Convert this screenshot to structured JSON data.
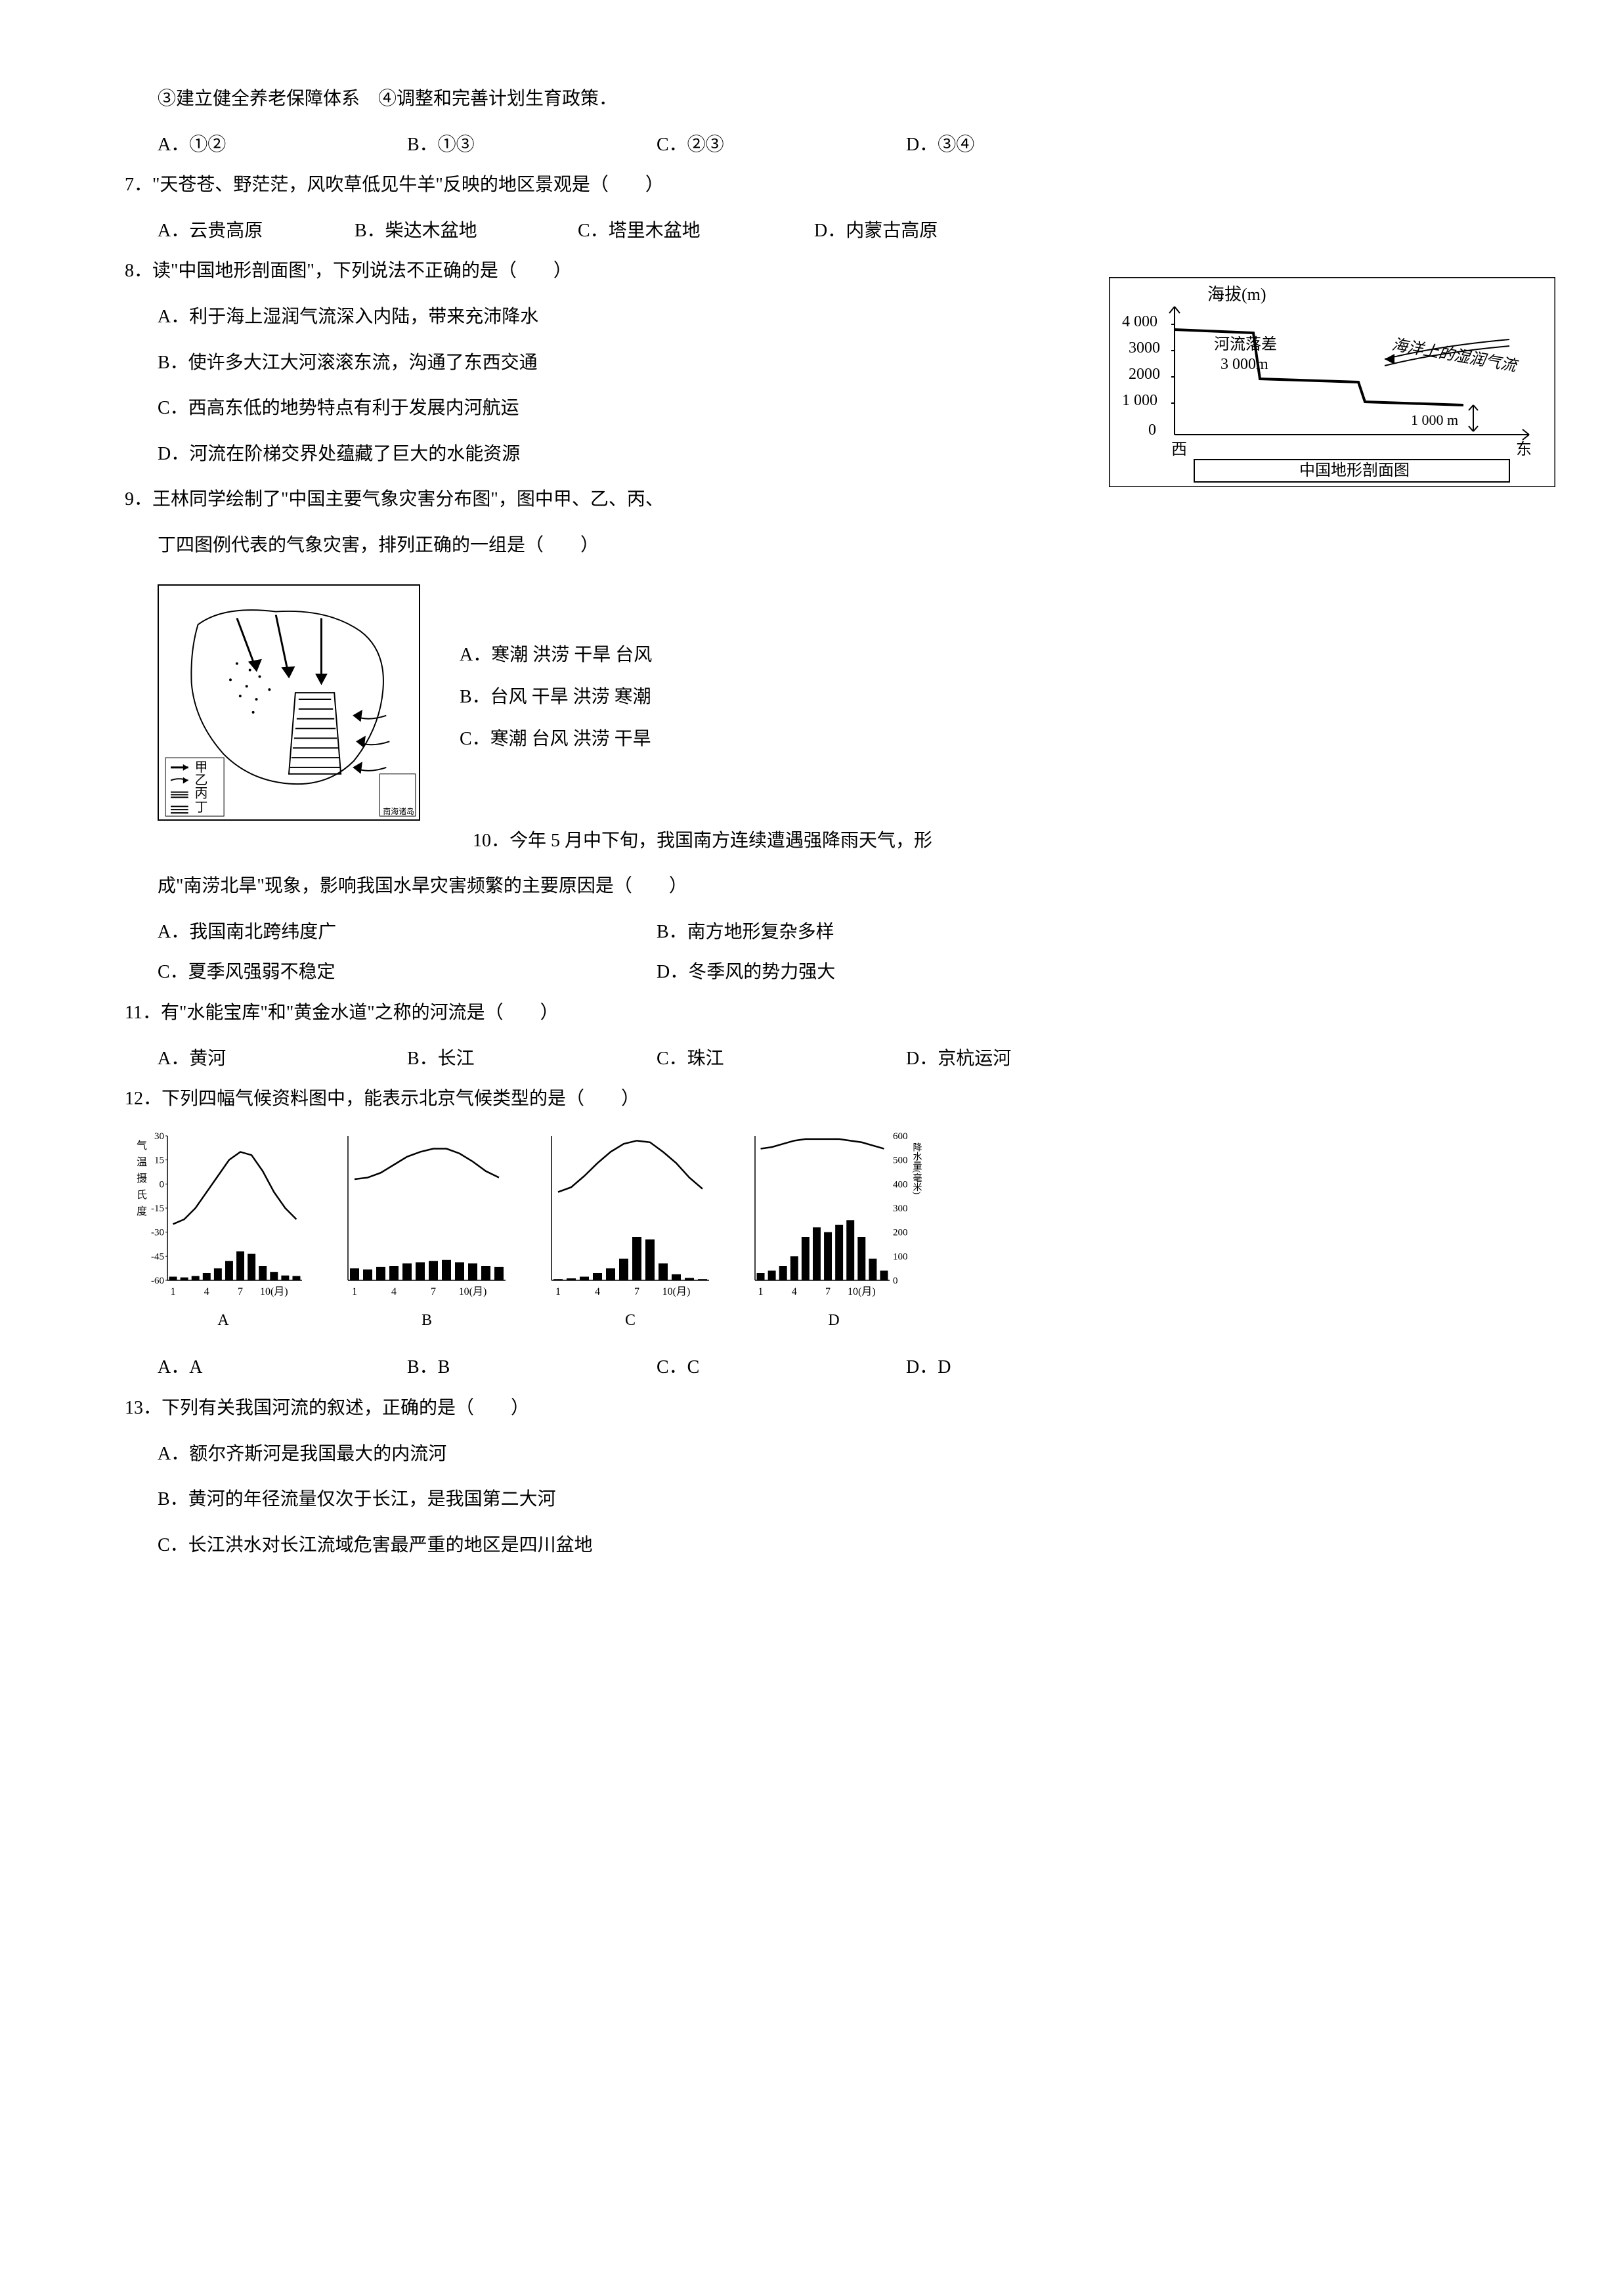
{
  "q6_pre": {
    "line1": "③建立健全养老保障体系　④调整和完善计划生育政策．",
    "opts": [
      "A．①②",
      "B．①③",
      "C．②③",
      "D．③④"
    ]
  },
  "q7": {
    "stem": "7．\"天苍苍、野茫茫，风吹草低见牛羊\"反映的地区景观是（　　）",
    "opts": [
      "A．云贵高原",
      "B．柴达木盆地",
      "C．塔里木盆地",
      "D．内蒙古高原"
    ]
  },
  "q8": {
    "stem": "8．读\"中国地形剖面图\"，下列说法不正确的是（　　）",
    "a": "A．利于海上湿润气流深入内陆，带来充沛降水",
    "b": "B．使许多大江大河滚滚东流，沟通了东西交通",
    "c": "C．西高东低的地势特点有利于发展内河航运",
    "d": "D．河流在阶梯交界处蕴藏了巨大的水能资源"
  },
  "q8_chart": {
    "title": "海拔(m)",
    "ylabels": [
      "4 000",
      "3000",
      "2000",
      "1 000",
      "0"
    ],
    "annot1": "河流落差",
    "annot2": "3 000m",
    "annot3": "海洋上的湿润气流",
    "annot4": "1 000 m",
    "xlabel_l": "西",
    "xlabel_r": "东",
    "caption": "中国地形剖面图",
    "line_points": "0,20 120,25 130,95 280,100 290,130 440,135"
  },
  "q9": {
    "stem1": "9．王林同学绘制了\"中国主要气象灾害分布图\"，图中甲、乙、丙、",
    "stem2": "丁四图例代表的气象灾害，排列正确的一组是（　　）",
    "a": "A．寒潮 洪涝 干旱 台风",
    "b": "B．台风 干旱 洪涝 寒潮",
    "c": "C．寒潮 台风 洪涝 干旱",
    "legend": [
      "甲",
      "乙",
      "丙",
      "丁"
    ]
  },
  "q10": {
    "stem_pre": "10．今年 5 月中下旬，我国南方连续遭遇强降雨天气，形",
    "stem2": "成\"南涝北旱\"现象，影响我国水旱灾害频繁的主要原因是（　　）",
    "a": "A．我国南北跨纬度广",
    "b": "B．南方地形复杂多样",
    "c": "C．夏季风强弱不稳定",
    "d": "D．冬季风的势力强大"
  },
  "q11": {
    "stem": "11．有\"水能宝库\"和\"黄金水道\"之称的河流是（　　）",
    "opts": [
      "A．黄河",
      "B．长江",
      "C．珠江",
      "D．京杭运河"
    ]
  },
  "q12": {
    "stem": "12．下列四幅气候资料图中，能表示北京气候类型的是（　　）",
    "labels": [
      "A",
      "B",
      "C",
      "D"
    ],
    "opts": [
      "A．A",
      "B．B",
      "C．C",
      "D．D"
    ],
    "yaxis_label": "气温摄氏度",
    "yaxis_r_label": "降水量(毫米)",
    "y_left": [
      "30",
      "15",
      "0",
      "-15",
      "-30",
      "-45",
      "-60"
    ],
    "y_right": [
      "600",
      "500",
      "400",
      "300",
      "200",
      "100",
      "0"
    ],
    "x_ticks": [
      "1",
      "4",
      "7",
      "10(月)"
    ],
    "chart_a": {
      "temp": [
        -25,
        -22,
        -15,
        -5,
        5,
        15,
        20,
        18,
        8,
        -5,
        -15,
        -22
      ],
      "precip": [
        15,
        12,
        18,
        30,
        50,
        80,
        120,
        110,
        60,
        35,
        20,
        18
      ]
    },
    "chart_b": {
      "temp": [
        3,
        4,
        7,
        12,
        17,
        20,
        22,
        22,
        19,
        14,
        8,
        4
      ],
      "precip": [
        50,
        45,
        55,
        60,
        70,
        75,
        80,
        85,
        75,
        70,
        60,
        55
      ]
    },
    "chart_c": {
      "temp": [
        -5,
        -2,
        5,
        13,
        20,
        25,
        27,
        26,
        20,
        13,
        4,
        -3
      ],
      "precip": [
        5,
        8,
        15,
        30,
        50,
        90,
        180,
        170,
        70,
        25,
        10,
        5
      ]
    },
    "chart_d": {
      "temp": [
        22,
        23,
        25,
        27,
        28,
        28,
        28,
        28,
        27,
        26,
        24,
        22
      ],
      "precip": [
        30,
        40,
        60,
        100,
        180,
        220,
        200,
        230,
        250,
        180,
        90,
        40
      ]
    }
  },
  "q13": {
    "stem": "13．下列有关我国河流的叙述，正确的是（　　）",
    "a": "A．额尔齐斯河是我国最大的内流河",
    "b": "B．黄河的年径流量仅次于长江，是我国第二大河",
    "c": "C．长江洪水对长江流域危害最严重的地区是四川盆地"
  }
}
